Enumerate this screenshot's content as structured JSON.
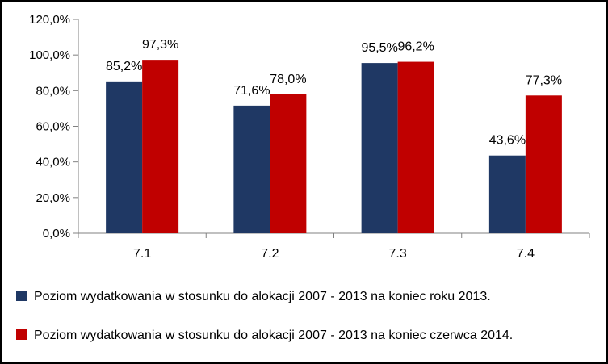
{
  "chart_data": {
    "type": "bar",
    "categories": [
      "7.1",
      "7.2",
      "7.3",
      "7.4"
    ],
    "series": [
      {
        "name": "Poziom wydatkowania w stosunku do alokacji 2007 - 2013 na koniec roku 2013.",
        "values": [
          85.2,
          71.6,
          95.5,
          43.6
        ],
        "labels": [
          "85,2%",
          "71,6%",
          "95,5%",
          "43,6%"
        ],
        "color": "#1F3864"
      },
      {
        "name": "Poziom wydatkowania w stosunku do alokacji 2007 - 2013 na koniec czerwca 2014.",
        "values": [
          97.3,
          78.0,
          96.2,
          77.3
        ],
        "labels": [
          "97,3%",
          "78,0%",
          "96,2%",
          "77,3%"
        ],
        "color": "#C00000"
      }
    ],
    "ylim": [
      0,
      120
    ],
    "yticks": [
      0,
      20,
      40,
      60,
      80,
      100,
      120
    ],
    "ytick_labels": [
      "0,0%",
      "20,0%",
      "40,0%",
      "60,0%",
      "80,0%",
      "100,0%",
      "120,0%"
    ],
    "grid": false,
    "legend_position": "bottom"
  }
}
